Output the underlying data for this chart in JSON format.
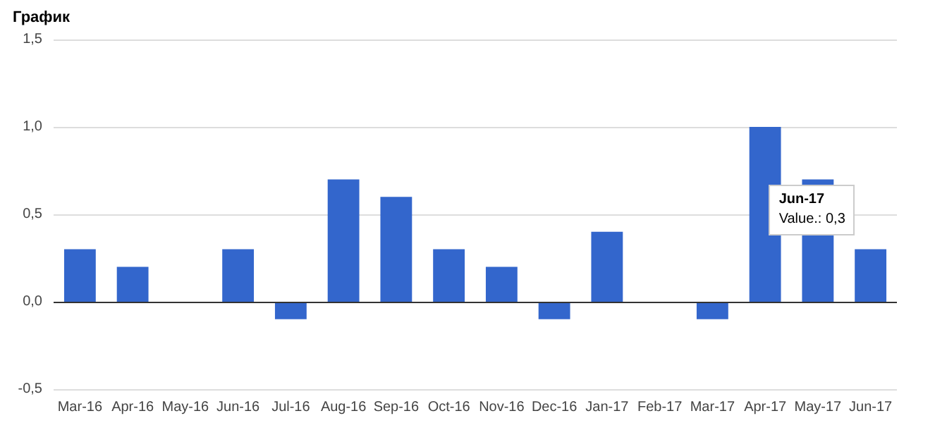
{
  "chart_data": {
    "type": "bar",
    "title": "График",
    "categories": [
      "Mar-16",
      "Apr-16",
      "May-16",
      "Jun-16",
      "Jul-16",
      "Aug-16",
      "Sep-16",
      "Oct-16",
      "Nov-16",
      "Dec-16",
      "Jan-17",
      "Feb-17",
      "Mar-17",
      "Apr-17",
      "May-17",
      "Jun-17"
    ],
    "values": [
      0.3,
      0.2,
      0,
      0.3,
      -0.1,
      0.7,
      0.6,
      0.3,
      0.2,
      -0.1,
      0.4,
      0,
      -0.1,
      1.0,
      0.7,
      0.3
    ],
    "color": "#3366cc",
    "ylim": [
      -0.5,
      1.5
    ],
    "yticks": [
      {
        "value": -0.5,
        "label": "-0,5"
      },
      {
        "value": 0,
        "label": "0,0"
      },
      {
        "value": 0.5,
        "label": "0,5"
      },
      {
        "value": 1,
        "label": "1,0"
      },
      {
        "value": 1.5,
        "label": "1,5"
      }
    ],
    "grid": "y",
    "annotations": [
      {
        "text": "Jun-17\nValue.: 0,3",
        "x": "Jun-17",
        "y": 0.3
      }
    ]
  }
}
